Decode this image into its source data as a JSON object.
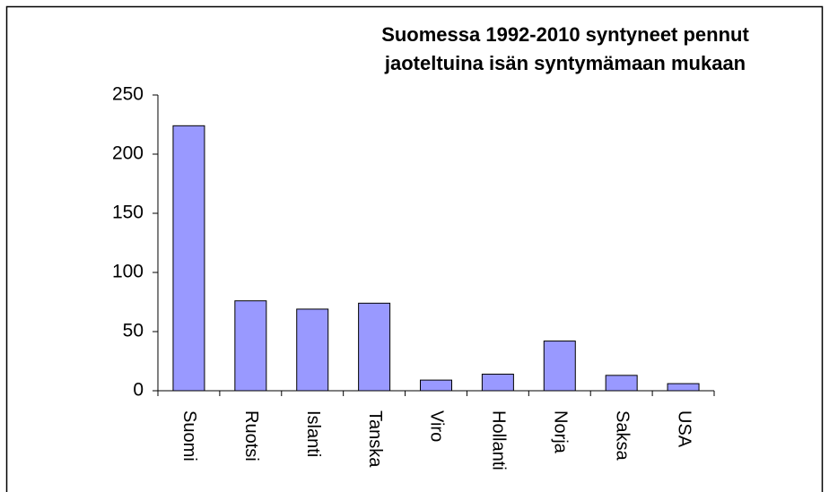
{
  "chart_data": {
    "type": "bar",
    "title": "Suomessa 1992-2010 syntyneet pennut",
    "subtitle": "jaoteltuina isän syntymämaan mukaan",
    "categories": [
      "Suomi",
      "Ruotsi",
      "Islanti",
      "Tanska",
      "Viro",
      "Hollanti",
      "Norja",
      "Saksa",
      "USA"
    ],
    "values": [
      224,
      76,
      69,
      74,
      9,
      14,
      42,
      13,
      6
    ],
    "color": "#9999ff",
    "ylim": [
      0,
      250
    ],
    "yticks": [
      0,
      50,
      100,
      150,
      200,
      250
    ],
    "grid": false
  }
}
